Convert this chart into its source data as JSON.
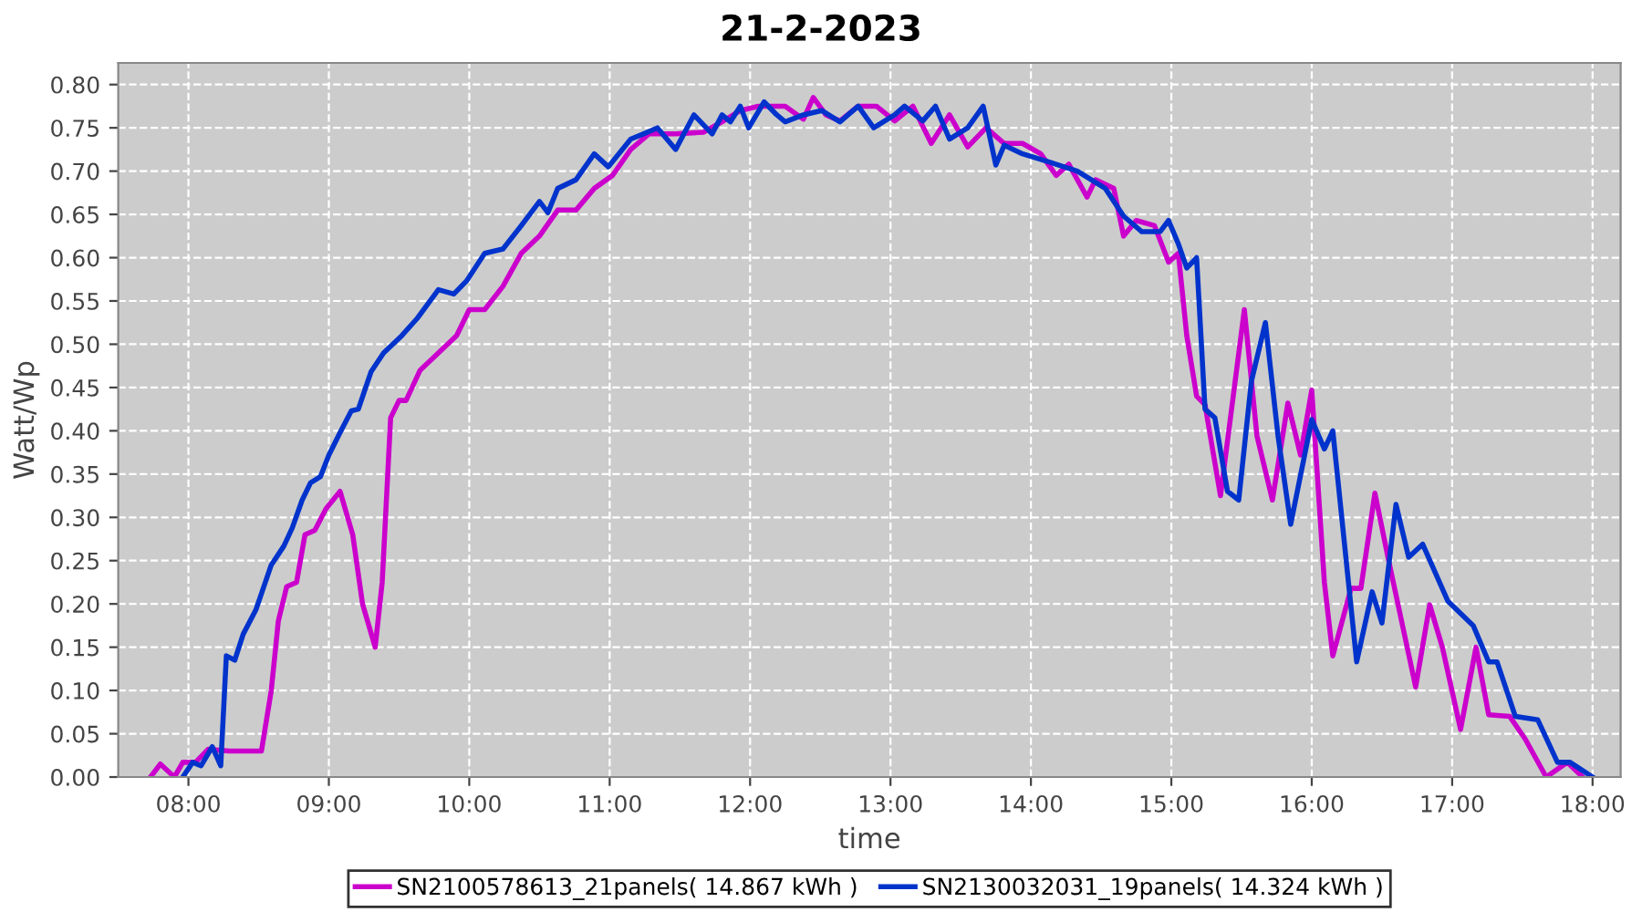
{
  "chart_data": {
    "type": "line",
    "title": "21-2-2023",
    "xlabel": "time",
    "ylabel": "Watt/Wp",
    "xlim": [
      7.5,
      18.2
    ],
    "ylim": [
      0,
      0.825
    ],
    "xticks": [
      {
        "value": 8,
        "label": "08:00"
      },
      {
        "value": 9,
        "label": "09:00"
      },
      {
        "value": 10,
        "label": "10:00"
      },
      {
        "value": 11,
        "label": "11:00"
      },
      {
        "value": 12,
        "label": "12:00"
      },
      {
        "value": 13,
        "label": "13:00"
      },
      {
        "value": 14,
        "label": "14:00"
      },
      {
        "value": 15,
        "label": "15:00"
      },
      {
        "value": 16,
        "label": "16:00"
      },
      {
        "value": 17,
        "label": "17:00"
      },
      {
        "value": 18,
        "label": "18:00"
      }
    ],
    "yticks": [
      {
        "value": 0,
        "label": "0.00"
      },
      {
        "value": 0.05,
        "label": "0.05"
      },
      {
        "value": 0.1,
        "label": "0.10"
      },
      {
        "value": 0.15,
        "label": "0.15"
      },
      {
        "value": 0.2,
        "label": "0.20"
      },
      {
        "value": 0.25,
        "label": "0.25"
      },
      {
        "value": 0.3,
        "label": "0.30"
      },
      {
        "value": 0.35,
        "label": "0.35"
      },
      {
        "value": 0.4,
        "label": "0.40"
      },
      {
        "value": 0.45,
        "label": "0.45"
      },
      {
        "value": 0.5,
        "label": "0.50"
      },
      {
        "value": 0.55,
        "label": "0.55"
      },
      {
        "value": 0.6,
        "label": "0.60"
      },
      {
        "value": 0.65,
        "label": "0.65"
      },
      {
        "value": 0.7,
        "label": "0.70"
      },
      {
        "value": 0.75,
        "label": "0.75"
      },
      {
        "value": 0.8,
        "label": "0.80"
      }
    ],
    "grid": true,
    "legend": "bottom",
    "marker": "none",
    "line_style": "solid",
    "series": [
      {
        "name": "SN2100578613_21panels( 14.867 kWh )",
        "color": "#cc00cc",
        "x": [
          7.73,
          7.8,
          7.9,
          7.96,
          8.05,
          8.14,
          8.29,
          8.42,
          8.52,
          8.59,
          8.64,
          8.7,
          8.77,
          8.83,
          8.9,
          8.98,
          9.08,
          9.17,
          9.24,
          9.33,
          9.38,
          9.44,
          9.5,
          9.55,
          9.65,
          9.78,
          9.91,
          10.0,
          10.11,
          10.24,
          10.37,
          10.5,
          10.63,
          10.76,
          10.89,
          11.02,
          11.15,
          11.28,
          11.47,
          11.67,
          11.8,
          11.93,
          12.06,
          12.25,
          12.38,
          12.45,
          12.54,
          12.64,
          12.77,
          12.9,
          13.03,
          13.16,
          13.29,
          13.42,
          13.55,
          13.68,
          13.81,
          13.94,
          14.07,
          14.18,
          14.27,
          14.4,
          14.46,
          14.59,
          14.66,
          14.75,
          14.88,
          14.98,
          15.05,
          15.11,
          15.18,
          15.24,
          15.35,
          15.52,
          15.61,
          15.72,
          15.83,
          15.92,
          16.0,
          16.09,
          16.15,
          16.28,
          16.35,
          16.45,
          16.54,
          16.74,
          16.84,
          16.93,
          17.06,
          17.17,
          17.26,
          17.41,
          17.52,
          17.67,
          17.82,
          17.93
        ],
        "values": [
          0,
          0.015,
          0,
          0.017,
          0.017,
          0.032,
          0.03,
          0.03,
          0.03,
          0.1,
          0.18,
          0.22,
          0.225,
          0.28,
          0.285,
          0.31,
          0.33,
          0.28,
          0.2,
          0.15,
          0.225,
          0.415,
          0.435,
          0.435,
          0.47,
          0.49,
          0.51,
          0.54,
          0.54,
          0.567,
          0.605,
          0.625,
          0.655,
          0.655,
          0.68,
          0.695,
          0.725,
          0.743,
          0.743,
          0.745,
          0.757,
          0.77,
          0.775,
          0.775,
          0.76,
          0.785,
          0.765,
          0.758,
          0.775,
          0.775,
          0.758,
          0.775,
          0.732,
          0.765,
          0.728,
          0.75,
          0.732,
          0.732,
          0.72,
          0.695,
          0.708,
          0.67,
          0.69,
          0.68,
          0.625,
          0.643,
          0.637,
          0.595,
          0.605,
          0.51,
          0.44,
          0.43,
          0.325,
          0.54,
          0.394,
          0.32,
          0.432,
          0.372,
          0.447,
          0.225,
          0.14,
          0.218,
          0.218,
          0.328,
          0.256,
          0.104,
          0.199,
          0.15,
          0.055,
          0.15,
          0.072,
          0.07,
          0.044,
          0,
          0.017,
          0
        ]
      },
      {
        "name": "SN2130032031_19panels( 14.324 kWh )",
        "color": "#0033cc",
        "x": [
          7.96,
          8.03,
          8.09,
          8.17,
          8.23,
          8.27,
          8.33,
          8.39,
          8.48,
          8.59,
          8.68,
          8.74,
          8.81,
          8.87,
          8.94,
          9.0,
          9.08,
          9.16,
          9.21,
          9.3,
          9.39,
          9.52,
          9.63,
          9.78,
          9.89,
          9.98,
          10.11,
          10.24,
          10.37,
          10.5,
          10.56,
          10.63,
          10.76,
          10.89,
          10.99,
          11.15,
          11.24,
          11.34,
          11.47,
          11.6,
          11.73,
          11.8,
          11.86,
          11.93,
          11.99,
          12.1,
          12.19,
          12.25,
          12.38,
          12.51,
          12.64,
          12.77,
          12.88,
          13.03,
          13.1,
          13.23,
          13.32,
          13.42,
          13.55,
          13.66,
          13.75,
          13.81,
          13.94,
          14.14,
          14.33,
          14.53,
          14.66,
          14.79,
          14.92,
          14.98,
          15.05,
          15.11,
          15.18,
          15.24,
          15.31,
          15.4,
          15.48,
          15.57,
          15.67,
          15.76,
          15.85,
          16.0,
          16.09,
          16.15,
          16.32,
          16.43,
          16.5,
          16.6,
          16.69,
          16.79,
          16.97,
          17.15,
          17.26,
          17.32,
          17.45,
          17.61,
          17.75,
          17.84,
          18.0
        ],
        "values": [
          0,
          0.017,
          0.013,
          0.035,
          0.013,
          0.14,
          0.135,
          0.165,
          0.193,
          0.245,
          0.267,
          0.288,
          0.32,
          0.34,
          0.347,
          0.372,
          0.398,
          0.423,
          0.425,
          0.468,
          0.49,
          0.51,
          0.53,
          0.563,
          0.558,
          0.573,
          0.605,
          0.61,
          0.637,
          0.665,
          0.652,
          0.68,
          0.69,
          0.72,
          0.705,
          0.737,
          0.743,
          0.75,
          0.725,
          0.765,
          0.743,
          0.765,
          0.757,
          0.775,
          0.75,
          0.78,
          0.765,
          0.757,
          0.765,
          0.77,
          0.757,
          0.775,
          0.75,
          0.765,
          0.775,
          0.758,
          0.775,
          0.737,
          0.75,
          0.775,
          0.707,
          0.73,
          0.72,
          0.71,
          0.7,
          0.68,
          0.648,
          0.63,
          0.63,
          0.643,
          0.616,
          0.588,
          0.6,
          0.425,
          0.415,
          0.33,
          0.32,
          0.457,
          0.525,
          0.394,
          0.292,
          0.413,
          0.379,
          0.4,
          0.133,
          0.214,
          0.178,
          0.315,
          0.254,
          0.269,
          0.203,
          0.175,
          0.133,
          0.133,
          0.07,
          0.066,
          0.017,
          0.017,
          0
        ]
      }
    ]
  }
}
